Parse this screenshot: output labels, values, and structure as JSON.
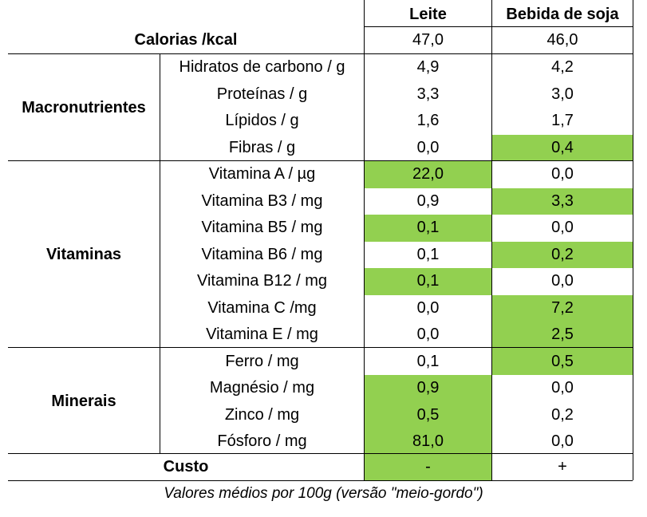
{
  "header": {
    "col_leite": "Leite",
    "col_soja": "Bebida de soja"
  },
  "calorias": {
    "label": "Calorias /kcal",
    "leite": "47,0",
    "soja": "46,0"
  },
  "groups": [
    {
      "name": "Macronutrientes",
      "rows": [
        {
          "label": "Hidratos de carbono / g",
          "leite": "4,9",
          "soja": "4,2",
          "hl": ""
        },
        {
          "label": "Proteínas / g",
          "leite": "3,3",
          "soja": "3,0",
          "hl": ""
        },
        {
          "label": "Lípidos / g",
          "leite": "1,6",
          "soja": "1,7",
          "hl": ""
        },
        {
          "label": "Fibras / g",
          "leite": "0,0",
          "soja": "0,4",
          "hl": "soja"
        }
      ]
    },
    {
      "name": "Vitaminas",
      "rows": [
        {
          "label": "Vitamina A / µg",
          "leite": "22,0",
          "soja": "0,0",
          "hl": "leite"
        },
        {
          "label": "Vitamina B3 / mg",
          "leite": "0,9",
          "soja": "3,3",
          "hl": "soja"
        },
        {
          "label": "Vitamina B5 / mg",
          "leite": "0,1",
          "soja": "0,0",
          "hl": "leite"
        },
        {
          "label": "Vitamina B6 / mg",
          "leite": "0,1",
          "soja": "0,2",
          "hl": "soja"
        },
        {
          "label": "Vitamina B12 / mg",
          "leite": "0,1",
          "soja": "0,0",
          "hl": "leite"
        },
        {
          "label": "Vitamina C /mg",
          "leite": "0,0",
          "soja": "7,2",
          "hl": "soja"
        },
        {
          "label": "Vitamina E / mg",
          "leite": "0,0",
          "soja": "2,5",
          "hl": "soja"
        }
      ]
    },
    {
      "name": "Minerais",
      "rows": [
        {
          "label": "Ferro / mg",
          "leite": "0,1",
          "soja": "0,5",
          "hl": "soja"
        },
        {
          "label": "Magnésio / mg",
          "leite": "0,9",
          "soja": "0,0",
          "hl": "leite"
        },
        {
          "label": "Zinco / mg",
          "leite": "0,5",
          "soja": "0,2",
          "hl": "leite"
        },
        {
          "label": "Fósforo / mg",
          "leite": "81,0",
          "soja": "0,0",
          "hl": "leite"
        }
      ]
    }
  ],
  "custo": {
    "label": "Custo",
    "leite": "-",
    "soja": "+",
    "hl": "leite"
  },
  "caption": "Valores médios por 100g (versão \"meio-gordo\")",
  "colors": {
    "highlight": "#92d050"
  }
}
